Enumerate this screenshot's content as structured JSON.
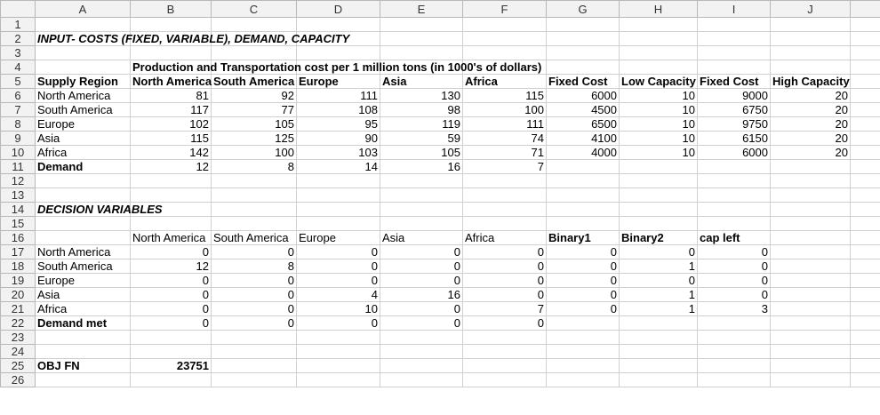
{
  "columns": [
    "A",
    "B",
    "C",
    "D",
    "E",
    "F",
    "G",
    "H",
    "I",
    "J"
  ],
  "row_numbers": [
    "1",
    "2",
    "3",
    "4",
    "5",
    "6",
    "7",
    "8",
    "9",
    "10",
    "11",
    "12",
    "13",
    "14",
    "15",
    "16",
    "17",
    "18",
    "19",
    "20",
    "21",
    "22",
    "23",
    "24",
    "25",
    "26"
  ],
  "rows": {
    "r2": {
      "A": "INPUT- COSTS (FIXED, VARIABLE), DEMAND, CAPACITY"
    },
    "r4": {
      "B": "Production and Transportation cost per 1 million tons (in 1000's of dollars)"
    },
    "r5": {
      "A": "Supply Region",
      "B": "North America",
      "C": "South America",
      "D": "Europe",
      "E": "Asia",
      "F": "Africa",
      "G": "Fixed Cost",
      "H": "Low Capacity",
      "I": "Fixed Cost",
      "J": "High Capacity"
    },
    "r6": {
      "A": "North America",
      "B": "81",
      "C": "92",
      "D": "111",
      "E": "130",
      "F": "115",
      "G": "6000",
      "H": "10",
      "I": "9000",
      "J": "20"
    },
    "r7": {
      "A": "South America",
      "B": "117",
      "C": "77",
      "D": "108",
      "E": "98",
      "F": "100",
      "G": "4500",
      "H": "10",
      "I": "6750",
      "J": "20"
    },
    "r8": {
      "A": "Europe",
      "B": "102",
      "C": "105",
      "D": "95",
      "E": "119",
      "F": "111",
      "G": "6500",
      "H": "10",
      "I": "9750",
      "J": "20"
    },
    "r9": {
      "A": "Asia",
      "B": "115",
      "C": "125",
      "D": "90",
      "E": "59",
      "F": "74",
      "G": "4100",
      "H": "10",
      "I": "6150",
      "J": "20"
    },
    "r10": {
      "A": "Africa",
      "B": "142",
      "C": "100",
      "D": "103",
      "E": "105",
      "F": "71",
      "G": "4000",
      "H": "10",
      "I": "6000",
      "J": "20"
    },
    "r11": {
      "A": "Demand",
      "B": "12",
      "C": "8",
      "D": "14",
      "E": "16",
      "F": "7"
    },
    "r14": {
      "A": "DECISION VARIABLES"
    },
    "r16": {
      "B": "North America",
      "C": "South America",
      "D": "Europe",
      "E": "Asia",
      "F": "Africa",
      "G": "Binary1",
      "H": "Binary2",
      "I": "cap left"
    },
    "r17": {
      "A": "North America",
      "B": "0",
      "C": "0",
      "D": "0",
      "E": "0",
      "F": "0",
      "G": "0",
      "H": "0",
      "I": "0"
    },
    "r18": {
      "A": "South America",
      "B": "12",
      "C": "8",
      "D": "0",
      "E": "0",
      "F": "0",
      "G": "0",
      "H": "1",
      "I": "0"
    },
    "r19": {
      "A": "Europe",
      "B": "0",
      "C": "0",
      "D": "0",
      "E": "0",
      "F": "0",
      "G": "0",
      "H": "0",
      "I": "0"
    },
    "r20": {
      "A": "Asia",
      "B": "0",
      "C": "0",
      "D": "4",
      "E": "16",
      "F": "0",
      "G": "0",
      "H": "1",
      "I": "0"
    },
    "r21": {
      "A": "Africa",
      "B": "0",
      "C": "0",
      "D": "10",
      "E": "0",
      "F": "7",
      "G": "0",
      "H": "1",
      "I": "3"
    },
    "r22": {
      "A": "Demand met",
      "B": "0",
      "C": "0",
      "D": "0",
      "E": "0",
      "F": "0"
    },
    "r25": {
      "A": "OBJ FN",
      "B": "23751"
    }
  }
}
